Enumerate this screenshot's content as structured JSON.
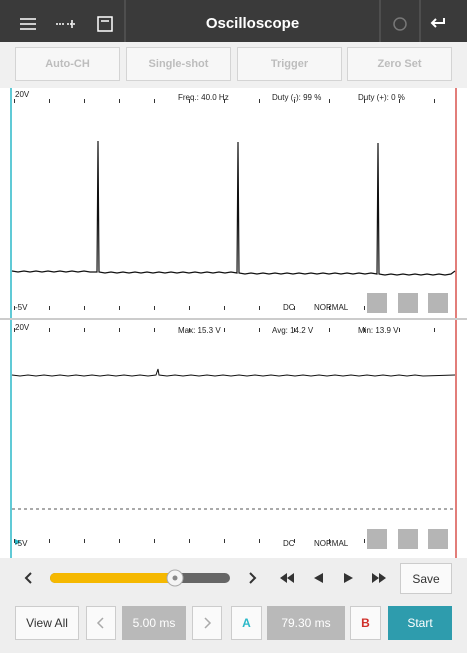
{
  "header": {
    "title": "Oscilloscope"
  },
  "toolbar": {
    "buttons": [
      "Auto-CH",
      "Single-shot",
      "Trigger",
      "Zero Set"
    ]
  },
  "channels": [
    {
      "top_scale": "20V",
      "readouts": [
        "Freq.: 40.0 Hz",
        "Duty (-): 99 %",
        "Duty (+): 0 %"
      ],
      "bottom_scale": "-5V",
      "coupling": "DC",
      "mode": "NORMAL"
    },
    {
      "top_scale": "20V",
      "readouts": [
        "Max: 15.3 V",
        "Avg: 14.2 V",
        "Min: 13.9 V"
      ],
      "bottom_scale": "-5V",
      "coupling": "DC",
      "mode": "NORMAL"
    }
  ],
  "controls": {
    "save": "Save"
  },
  "footer": {
    "view_all": "View All",
    "time_div": "5.00 ms",
    "cursor_a": "A",
    "cursor_delta": "79.30 ms",
    "cursor_b": "B",
    "start": "Start"
  }
}
